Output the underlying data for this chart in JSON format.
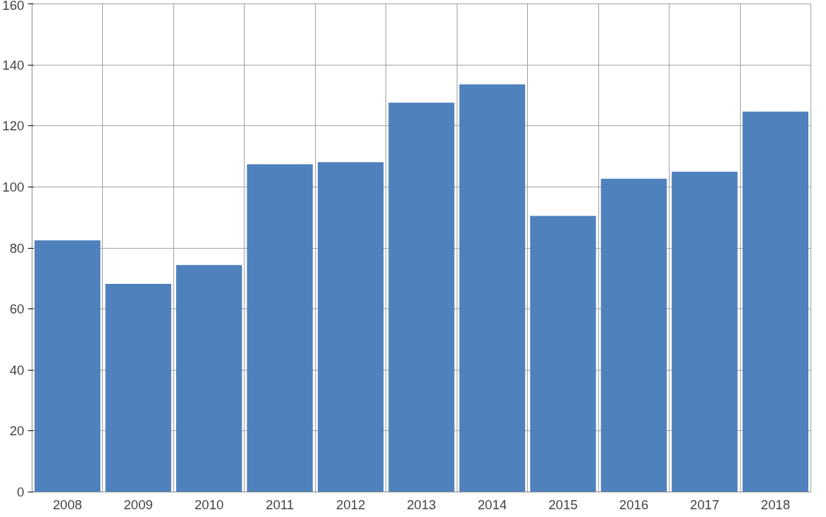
{
  "chart_data": {
    "type": "bar",
    "categories": [
      "2008",
      "2009",
      "2010",
      "2011",
      "2012",
      "2013",
      "2014",
      "2015",
      "2016",
      "2017",
      "2018"
    ],
    "values": [
      82.5,
      68.2,
      74.4,
      107.4,
      108.1,
      127.6,
      133.6,
      90.5,
      102.7,
      105.0,
      124.7
    ],
    "color": "#4f81bd",
    "ylim": [
      0,
      160
    ],
    "yticks": [
      0,
      20,
      40,
      60,
      80,
      100,
      120,
      140,
      160
    ],
    "grid": true
  }
}
